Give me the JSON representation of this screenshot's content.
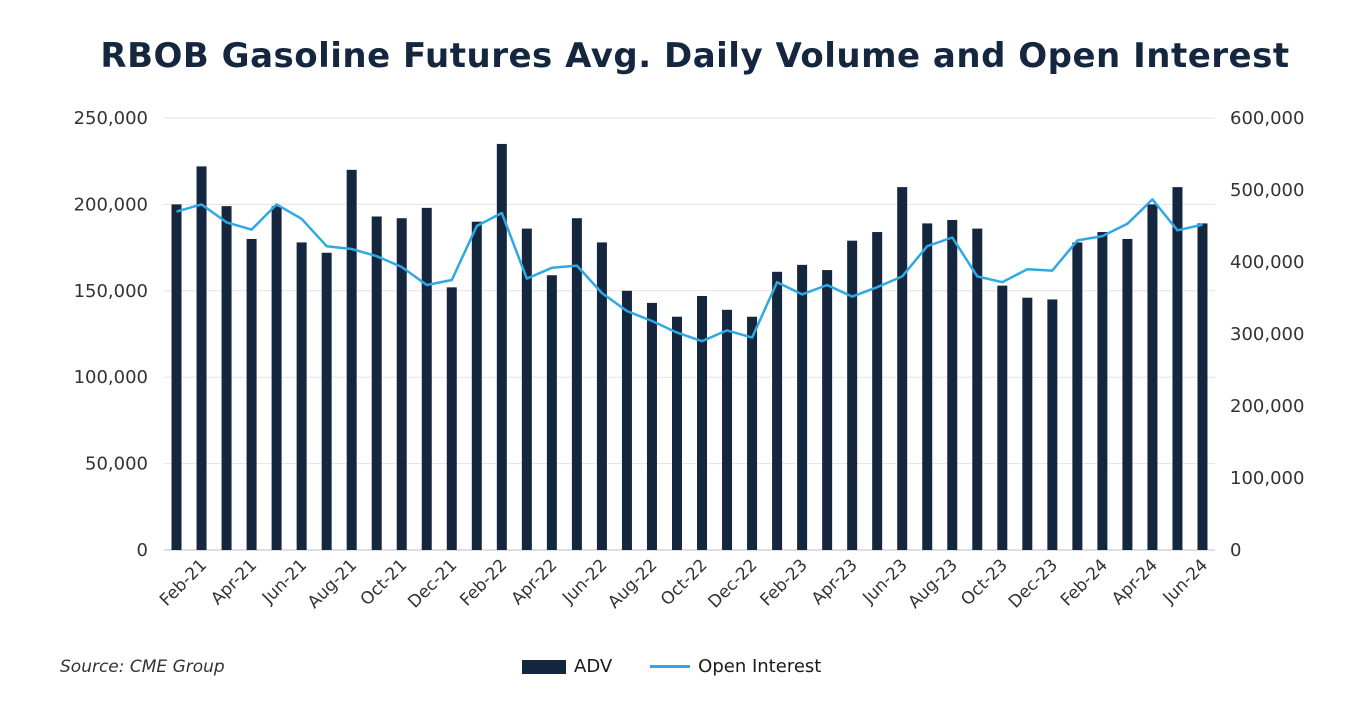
{
  "title": "RBOB Gasoline Futures Avg. Daily Volume and Open Interest",
  "source": "Source: CME Group",
  "legend": {
    "adv": "ADV",
    "oi": "Open Interest"
  },
  "colors": {
    "bar": "#14273f",
    "line": "#2fa9e3",
    "grid": "#e3e3e3",
    "title": "#14273f"
  },
  "chart_data": {
    "type": "bar",
    "categories": [
      "Jan-21",
      "Feb-21",
      "Mar-21",
      "Apr-21",
      "May-21",
      "Jun-21",
      "Jul-21",
      "Aug-21",
      "Sep-21",
      "Oct-21",
      "Nov-21",
      "Dec-21",
      "Jan-22",
      "Feb-22",
      "Mar-22",
      "Apr-22",
      "May-22",
      "Jun-22",
      "Jul-22",
      "Aug-22",
      "Sep-22",
      "Oct-22",
      "Nov-22",
      "Dec-22",
      "Jan-23",
      "Feb-23",
      "Mar-23",
      "Apr-23",
      "May-23",
      "Jun-23",
      "Jul-23",
      "Aug-23",
      "Sep-23",
      "Oct-23",
      "Nov-23",
      "Dec-23",
      "Jan-24",
      "Feb-24",
      "Mar-24",
      "Apr-24",
      "May-24",
      "Jun-24"
    ],
    "x_tick_labels": [
      "Feb-21",
      "Apr-21",
      "Jun-21",
      "Aug-21",
      "Oct-21",
      "Dec-21",
      "Feb-22",
      "Apr-22",
      "Jun-22",
      "Aug-22",
      "Oct-22",
      "Dec-22",
      "Feb-23",
      "Apr-23",
      "Jun-23",
      "Aug-23",
      "Oct-23",
      "Dec-23",
      "Feb-24",
      "Apr-24",
      "Jun-24"
    ],
    "series": [
      {
        "name": "ADV",
        "type": "bar",
        "axis": "left",
        "values": [
          200000,
          222000,
          199000,
          180000,
          199000,
          178000,
          172000,
          220000,
          193000,
          192000,
          198000,
          152000,
          190000,
          235000,
          186000,
          159000,
          192000,
          178000,
          150000,
          143000,
          135000,
          147000,
          139000,
          135000,
          161000,
          165000,
          162000,
          179000,
          184000,
          210000,
          189000,
          191000,
          186000,
          153000,
          146000,
          145000,
          178000,
          184000,
          180000,
          200000,
          210000,
          189000
        ]
      },
      {
        "name": "Open Interest",
        "type": "line",
        "axis": "right",
        "values": [
          470000,
          480000,
          455000,
          445000,
          480000,
          460000,
          422000,
          418000,
          408000,
          393000,
          368000,
          375000,
          450000,
          468000,
          377000,
          392000,
          395000,
          357000,
          332000,
          318000,
          302000,
          290000,
          305000,
          295000,
          372000,
          355000,
          368000,
          352000,
          365000,
          380000,
          422000,
          434000,
          380000,
          372000,
          390000,
          388000,
          430000,
          436000,
          453000,
          487000,
          444000,
          452000
        ]
      }
    ],
    "y_left": {
      "min": 0,
      "max": 250000,
      "ticks": [
        "0",
        "50,000",
        "100,000",
        "150,000",
        "200,000",
        "250,000"
      ]
    },
    "y_right": {
      "min": 0,
      "max": 600000,
      "ticks": [
        "0",
        "100,000",
        "200,000",
        "300,000",
        "400,000",
        "500,000",
        "600,000"
      ]
    },
    "grid": true,
    "legend_position": "bottom"
  }
}
